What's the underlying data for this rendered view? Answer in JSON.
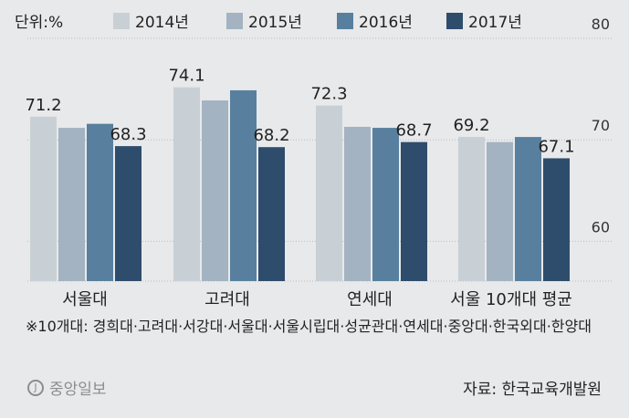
{
  "unit_label": "단위:%",
  "footnote": "※10개대: 경희대·고려대·서강대·서울대·서울시립대·성균관대·연세대·중앙대·한국외대·한양대",
  "logo_text": "중앙일보",
  "source": "자료: 한국교육개발원",
  "colors": {
    "2014년": "#c9d0d5",
    "2015년": "#a3b3c1",
    "2016년": "#58809e",
    "2017년": "#2e4d6c",
    "background": "#e8e9eb",
    "grid": "#b8bcc0"
  },
  "chart_data": {
    "type": "bar",
    "categories": [
      "서울대",
      "고려대",
      "연세대",
      "서울 10개대 평균"
    ],
    "series": [
      {
        "name": "2014년",
        "values": [
          71.2,
          74.1,
          72.3,
          69.2
        ]
      },
      {
        "name": "2015년",
        "values": [
          70.1,
          72.8,
          70.2,
          68.7
        ]
      },
      {
        "name": "2016년",
        "values": [
          70.5,
          73.8,
          70.1,
          69.2
        ]
      },
      {
        "name": "2017년",
        "values": [
          68.3,
          68.2,
          68.7,
          67.1
        ]
      }
    ],
    "labeled_series": [
      "2014년",
      "2017년"
    ],
    "y_ticks": [
      60,
      70,
      80
    ],
    "ylim": [
      55,
      80
    ],
    "grid": true,
    "legend": "top"
  }
}
